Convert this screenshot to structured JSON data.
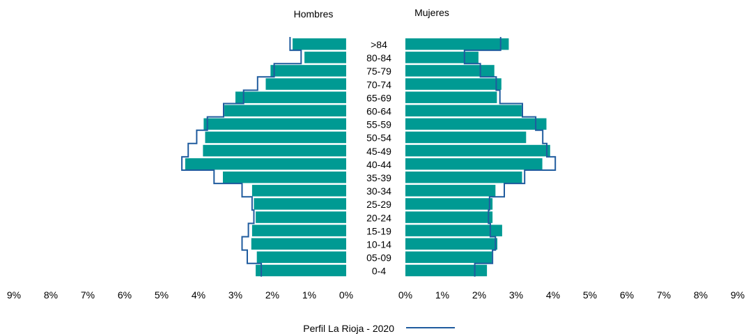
{
  "chart_data": {
    "type": "bar",
    "orientation": "horizontal",
    "layout": "population-pyramid",
    "title": "",
    "panel_titles": {
      "left": "Hombres",
      "right": "Mujeres"
    },
    "categories": [
      ">84",
      "80-84",
      "75-79",
      "70-74",
      "65-69",
      "60-64",
      "55-59",
      "50-54",
      "45-49",
      "40-44",
      "35-39",
      "30-34",
      "25-29",
      "20-24",
      "15-19",
      "10-14",
      "05-09",
      "0-4"
    ],
    "x_ticks_left": [
      "9%",
      "8%",
      "7%",
      "6%",
      "5%",
      "4%",
      "3%",
      "2%",
      "1%",
      "0%"
    ],
    "x_ticks_right": [
      "0%",
      "1%",
      "2%",
      "3%",
      "4%",
      "5%",
      "6%",
      "7%",
      "8%",
      "9%"
    ],
    "xlim": [
      0,
      9
    ],
    "colors": {
      "bars": "#009a93",
      "outline": "#1f5b9e"
    },
    "series": [
      {
        "panel": "left",
        "values": [
          1.45,
          1.13,
          2.05,
          2.18,
          3.0,
          3.3,
          3.86,
          3.82,
          3.88,
          4.36,
          3.34,
          2.55,
          2.5,
          2.45,
          2.55,
          2.57,
          2.42,
          2.45
        ]
      },
      {
        "panel": "right",
        "values": [
          2.8,
          1.98,
          2.41,
          2.6,
          2.48,
          3.15,
          3.82,
          3.27,
          3.92,
          3.71,
          3.16,
          2.44,
          2.36,
          2.36,
          2.62,
          2.49,
          2.34,
          2.21
        ]
      },
      {
        "panel": "left",
        "kind": "outline",
        "values": [
          1.52,
          1.22,
          1.95,
          2.4,
          2.78,
          3.32,
          3.76,
          4.05,
          4.28,
          4.45,
          3.58,
          2.82,
          2.55,
          2.5,
          2.65,
          2.82,
          2.68,
          2.3
        ]
      },
      {
        "panel": "right",
        "kind": "outline",
        "values": [
          2.58,
          1.6,
          2.03,
          2.46,
          2.56,
          3.17,
          3.53,
          3.72,
          3.83,
          4.06,
          3.23,
          2.68,
          2.28,
          2.25,
          2.3,
          2.44,
          2.36,
          1.88
        ]
      }
    ],
    "legend": {
      "position": "bottom",
      "label": "Perfil La Rioja - 2020"
    }
  }
}
